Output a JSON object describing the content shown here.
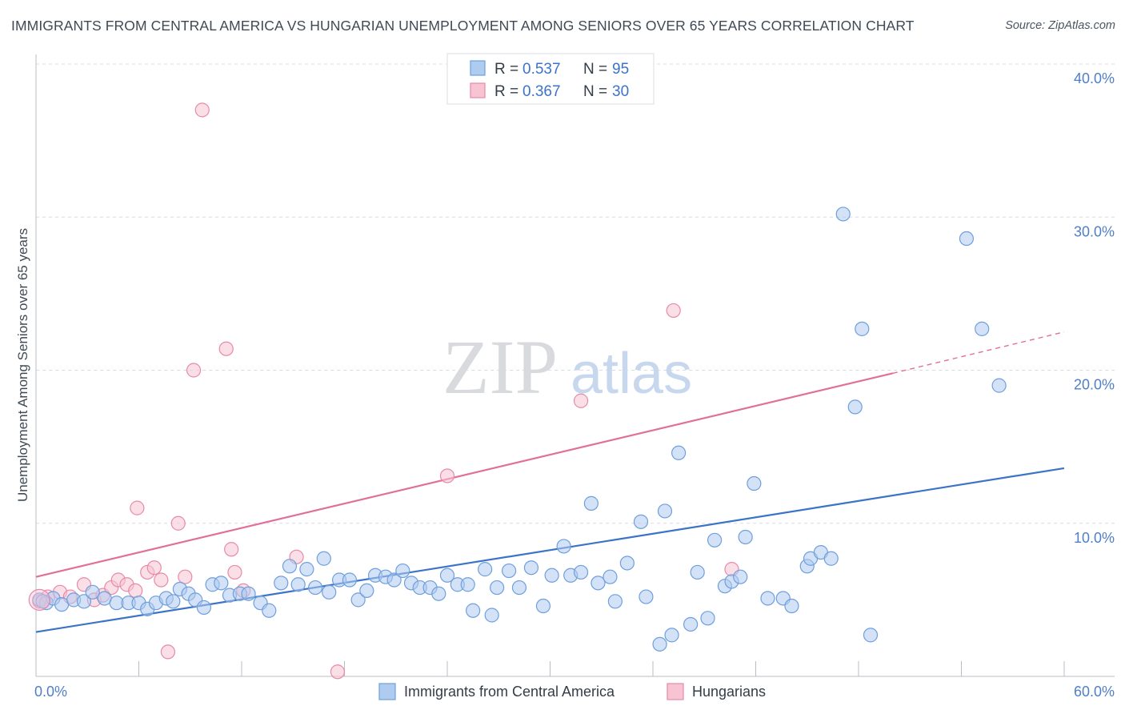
{
  "title": "IMMIGRANTS FROM CENTRAL AMERICA VS HUNGARIAN UNEMPLOYMENT AMONG SENIORS OVER 65 YEARS CORRELATION CHART",
  "source": "Source: ZipAtlas.com",
  "watermark": {
    "zip": "ZIP",
    "atlas": "atlas"
  },
  "colors": {
    "blue_fill": "#aecbf0",
    "blue_stroke": "#6f9fdc",
    "blue_line": "#3b73c8",
    "pink_fill": "#f8c4d4",
    "pink_stroke": "#e889a8",
    "pink_line": "#e0709a",
    "tick_text": "#4f7fc9",
    "grid": "#d9dde3"
  },
  "legend": {
    "rows": [
      {
        "series": "blue",
        "r_label": "R =",
        "r_value": "0.537",
        "n_label": "N =",
        "n_value": "95"
      },
      {
        "series": "pink",
        "r_label": "R =",
        "r_value": "0.367",
        "n_label": "N =",
        "n_value": "30"
      }
    ]
  },
  "chart_data": {
    "type": "scatter",
    "title": "IMMIGRANTS FROM CENTRAL AMERICA VS HUNGARIAN UNEMPLOYMENT AMONG SENIORS OVER 65 YEARS CORRELATION CHART",
    "xlabel": "",
    "ylabel": "Unemployment Among Seniors over 65 years",
    "xlim": [
      0,
      60
    ],
    "ylim": [
      0,
      40
    ],
    "x_tick_labels": [
      {
        "value": 0,
        "label": "0.0%"
      },
      {
        "value": 60,
        "label": "60.0%"
      }
    ],
    "y_tick_labels": [
      {
        "value": 10,
        "label": "10.0%"
      },
      {
        "value": 20,
        "label": "20.0%"
      },
      {
        "value": 30,
        "label": "30.0%"
      },
      {
        "value": 40,
        "label": "40.0%"
      }
    ],
    "grid": "horizontal dashed",
    "legend_position": "top-center",
    "series": [
      {
        "name": "Immigrants from Central America",
        "color": "blue",
        "trend": {
          "x0": 0,
          "y0": 2.9,
          "x1": 60,
          "y1": 13.6
        },
        "points": [
          [
            0.2,
            5.0
          ],
          [
            0.6,
            4.8
          ],
          [
            1.0,
            5.1
          ],
          [
            1.5,
            4.7
          ],
          [
            2.2,
            5.0
          ],
          [
            2.8,
            4.9
          ],
          [
            3.3,
            5.5
          ],
          [
            4.0,
            5.1
          ],
          [
            4.7,
            4.8
          ],
          [
            5.4,
            4.8
          ],
          [
            6.0,
            4.8
          ],
          [
            6.5,
            4.4
          ],
          [
            7.0,
            4.8
          ],
          [
            7.6,
            5.1
          ],
          [
            8.0,
            4.9
          ],
          [
            8.4,
            5.7
          ],
          [
            8.9,
            5.4
          ],
          [
            9.3,
            5.0
          ],
          [
            9.8,
            4.5
          ],
          [
            10.3,
            6.0
          ],
          [
            10.8,
            6.1
          ],
          [
            11.3,
            5.3
          ],
          [
            11.9,
            5.4
          ],
          [
            12.4,
            5.4
          ],
          [
            13.1,
            4.8
          ],
          [
            13.6,
            4.3
          ],
          [
            14.3,
            6.1
          ],
          [
            14.8,
            7.2
          ],
          [
            15.3,
            6.0
          ],
          [
            15.8,
            7.0
          ],
          [
            16.3,
            5.8
          ],
          [
            16.8,
            7.7
          ],
          [
            17.1,
            5.5
          ],
          [
            17.7,
            6.3
          ],
          [
            18.3,
            6.3
          ],
          [
            18.8,
            5.0
          ],
          [
            19.3,
            5.6
          ],
          [
            19.8,
            6.6
          ],
          [
            20.4,
            6.5
          ],
          [
            20.9,
            6.3
          ],
          [
            21.4,
            6.9
          ],
          [
            21.9,
            6.1
          ],
          [
            22.4,
            5.8
          ],
          [
            23.0,
            5.8
          ],
          [
            23.5,
            5.4
          ],
          [
            24.0,
            6.6
          ],
          [
            24.6,
            6.0
          ],
          [
            25.2,
            6.0
          ],
          [
            25.5,
            4.3
          ],
          [
            26.2,
            7.0
          ],
          [
            26.6,
            4.0
          ],
          [
            26.9,
            5.8
          ],
          [
            27.6,
            6.9
          ],
          [
            28.2,
            5.8
          ],
          [
            28.9,
            7.1
          ],
          [
            29.6,
            4.6
          ],
          [
            30.1,
            6.6
          ],
          [
            30.8,
            8.5
          ],
          [
            31.2,
            6.6
          ],
          [
            31.8,
            6.8
          ],
          [
            32.4,
            11.3
          ],
          [
            32.8,
            6.1
          ],
          [
            33.5,
            6.5
          ],
          [
            33.8,
            4.9
          ],
          [
            34.5,
            7.4
          ],
          [
            35.3,
            10.1
          ],
          [
            35.6,
            5.2
          ],
          [
            36.4,
            2.1
          ],
          [
            36.7,
            10.8
          ],
          [
            37.1,
            2.7
          ],
          [
            37.5,
            14.6
          ],
          [
            38.2,
            3.4
          ],
          [
            38.6,
            6.8
          ],
          [
            39.2,
            3.8
          ],
          [
            39.6,
            8.9
          ],
          [
            40.2,
            5.9
          ],
          [
            40.6,
            6.2
          ],
          [
            41.1,
            6.5
          ],
          [
            41.4,
            9.1
          ],
          [
            41.9,
            12.6
          ],
          [
            42.7,
            5.1
          ],
          [
            43.6,
            5.1
          ],
          [
            44.1,
            4.6
          ],
          [
            45.0,
            7.2
          ],
          [
            45.2,
            7.7
          ],
          [
            45.8,
            8.1
          ],
          [
            46.4,
            7.7
          ],
          [
            47.1,
            30.2
          ],
          [
            47.8,
            17.6
          ],
          [
            48.2,
            22.7
          ],
          [
            48.7,
            2.7
          ],
          [
            54.3,
            28.6
          ],
          [
            56.2,
            19.0
          ],
          [
            55.2,
            22.7
          ],
          [
            0.4,
            4.9
          ]
        ]
      },
      {
        "name": "Hungarians",
        "color": "pink",
        "trend": {
          "x0": 0,
          "y0": 6.5,
          "x1": 50,
          "y1": 19.8
        },
        "trend_dashed_to": {
          "x": 60,
          "y": 22.5
        },
        "points": [
          [
            0.2,
            4.9
          ],
          [
            0.7,
            5.2
          ],
          [
            1.4,
            5.5
          ],
          [
            2.0,
            5.2
          ],
          [
            2.8,
            6.0
          ],
          [
            3.4,
            5.0
          ],
          [
            3.9,
            5.3
          ],
          [
            4.4,
            5.8
          ],
          [
            4.8,
            6.3
          ],
          [
            5.3,
            6.0
          ],
          [
            5.8,
            5.6
          ],
          [
            5.9,
            11.0
          ],
          [
            6.5,
            6.8
          ],
          [
            6.9,
            7.1
          ],
          [
            7.3,
            6.3
          ],
          [
            7.7,
            1.6
          ],
          [
            8.3,
            10.0
          ],
          [
            8.7,
            6.5
          ],
          [
            9.2,
            20.0
          ],
          [
            9.7,
            37.0
          ],
          [
            11.1,
            21.4
          ],
          [
            11.4,
            8.3
          ],
          [
            11.6,
            6.8
          ],
          [
            12.1,
            5.6
          ],
          [
            15.2,
            7.8
          ],
          [
            17.6,
            0.3
          ],
          [
            24.0,
            13.1
          ],
          [
            31.8,
            18.0
          ],
          [
            37.2,
            23.9
          ],
          [
            40.6,
            7.0
          ]
        ]
      }
    ]
  },
  "bottom_legend": [
    {
      "series": "blue",
      "label": "Immigrants from Central America"
    },
    {
      "series": "pink",
      "label": "Hungarians"
    }
  ]
}
